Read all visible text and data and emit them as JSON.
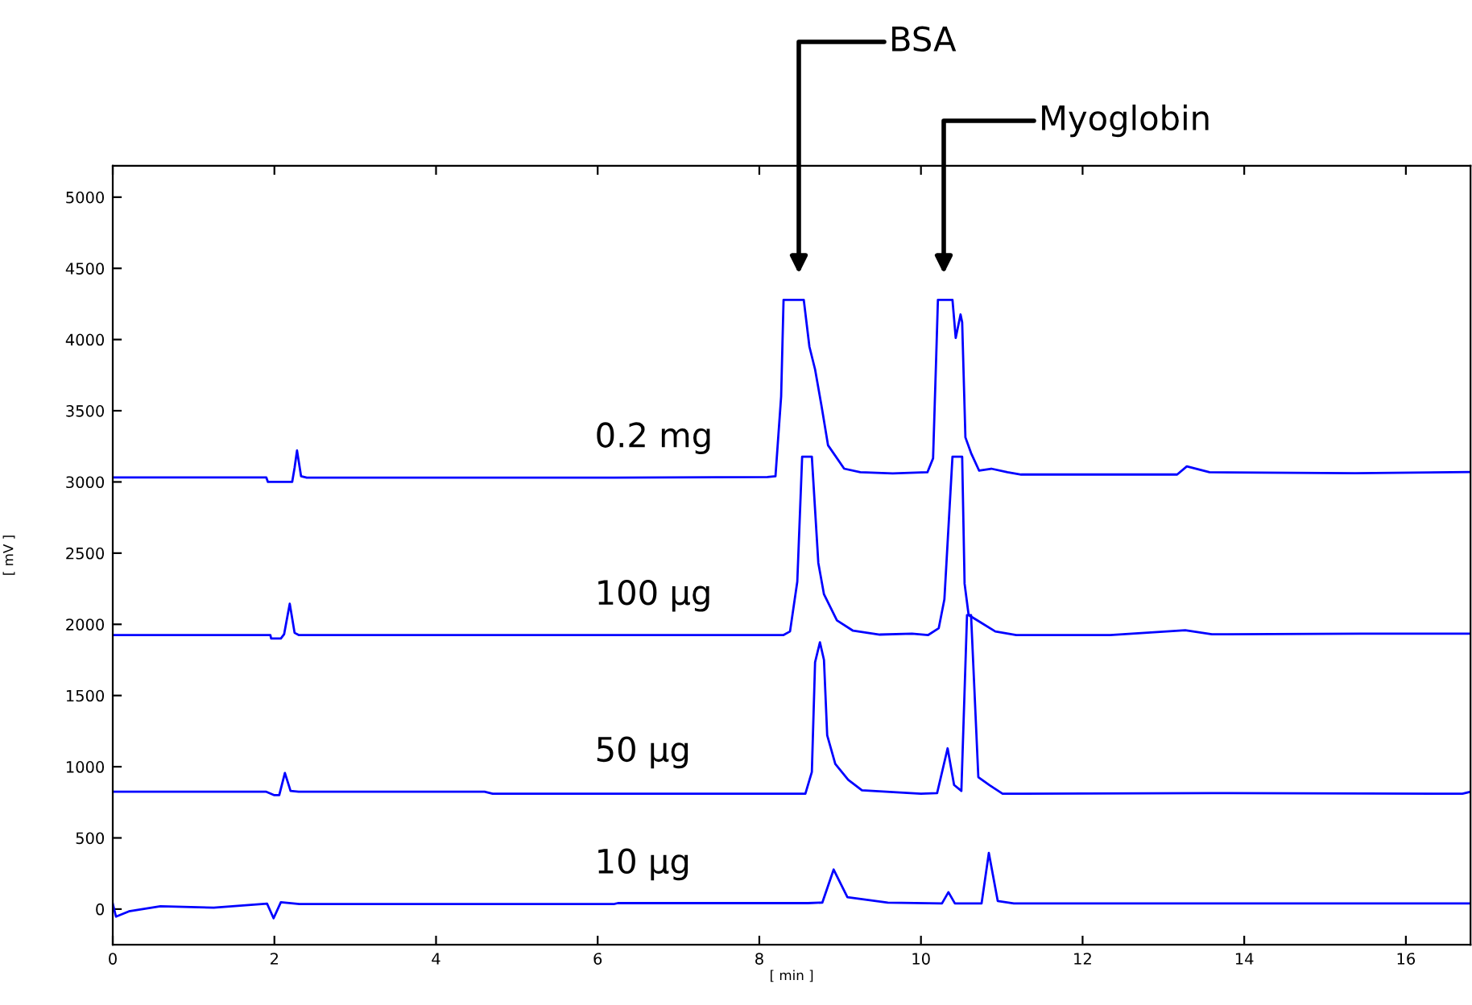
{
  "chart_data": {
    "type": "line",
    "xlabel": "[ min ]",
    "ylabel": "[ mV ]",
    "xlim": [
      0,
      16.8
    ],
    "ylim": [
      -250,
      5220
    ],
    "xticks": [
      0,
      2,
      4,
      6,
      8,
      10,
      12,
      14,
      16
    ],
    "yticks": [
      0,
      500,
      1000,
      1500,
      2000,
      2500,
      3000,
      3500,
      4000,
      4500,
      5000
    ],
    "grid": false,
    "legend": false,
    "marker": "none",
    "line_style": "solid",
    "annotations": [
      "BSA",
      "Myoglobin"
    ],
    "series": [
      {
        "name": "0.2 mg",
        "color": "#0000ff",
        "x": [
          0,
          1.9,
          1.92,
          2.22,
          2.25,
          2.28,
          2.33,
          2.4,
          6.0,
          8.1,
          8.2,
          8.27,
          8.3,
          8.55,
          8.62,
          8.69,
          8.77,
          8.85,
          9.05,
          9.25,
          9.65,
          10.08,
          10.15,
          10.19,
          10.21,
          10.39,
          10.43,
          10.49,
          10.51,
          10.55,
          10.62,
          10.72,
          10.87,
          11.07,
          11.24,
          13.17,
          13.29,
          13.57,
          15.37,
          16.8
        ],
        "values": [
          3031,
          3031,
          3000,
          3000,
          3100,
          3221,
          3040,
          3030,
          3030,
          3035,
          3040,
          3600,
          4279,
          4279,
          3950,
          3790,
          3533,
          3258,
          3093,
          3068,
          3060,
          3068,
          3166,
          3902,
          4279,
          4279,
          4011,
          4176,
          4121,
          3313,
          3203,
          3079,
          3093,
          3068,
          3052,
          3052,
          3109,
          3068,
          3061,
          3070
        ]
      },
      {
        "name": "100 µg",
        "color": "#0000ff",
        "x": [
          0,
          1.95,
          1.96,
          2.08,
          2.12,
          2.19,
          2.25,
          2.3,
          8.3,
          8.38,
          8.47,
          8.53,
          8.65,
          8.73,
          8.8,
          8.96,
          9.16,
          9.49,
          9.89,
          10.09,
          10.22,
          10.29,
          10.39,
          10.51,
          10.54,
          10.59,
          10.72,
          10.92,
          11.18,
          12.34,
          13.27,
          13.6,
          15.45,
          16.8
        ],
        "values": [
          1925,
          1925,
          1900,
          1900,
          1930,
          2145,
          1940,
          1925,
          1925,
          1950,
          2300,
          3177,
          3177,
          2432,
          2211,
          2028,
          1955,
          1928,
          1935,
          1925,
          1973,
          2175,
          3177,
          3177,
          2285,
          2065,
          2020,
          1950,
          1925,
          1925,
          1958,
          1930,
          1935,
          1935
        ]
      },
      {
        "name": "50 µg",
        "color": "#0000ff",
        "x": [
          0,
          1.9,
          2.0,
          2.06,
          2.13,
          2.2,
          2.3,
          4.6,
          4.7,
          8.57,
          8.65,
          8.69,
          8.75,
          8.8,
          8.84,
          8.94,
          9.1,
          9.27,
          10.0,
          10.2,
          10.33,
          10.41,
          10.5,
          10.57,
          10.62,
          10.71,
          10.85,
          11.01,
          13.6,
          16.7,
          16.8
        ],
        "values": [
          824,
          824,
          800,
          800,
          956,
          830,
          824,
          824,
          810,
          810,
          963,
          1734,
          1874,
          1750,
          1220,
          1019,
          908,
          835,
          810,
          815,
          1129,
          872,
          830,
          2065,
          2065,
          927,
          870,
          810,
          815,
          810,
          824
        ]
      },
      {
        "name": "10 µg",
        "color": "#0000ff",
        "x": [
          0,
          0.04,
          0.2,
          0.59,
          1.25,
          1.91,
          1.99,
          2.08,
          2.31,
          6.2,
          6.25,
          8.6,
          8.78,
          8.92,
          9.09,
          9.59,
          10.26,
          10.34,
          10.42,
          10.75,
          10.84,
          10.95,
          11.15,
          16.8
        ],
        "values": [
          38,
          -53,
          -16,
          20,
          10,
          38,
          -64,
          48,
          35,
          35,
          42,
          42,
          46,
          278,
          83,
          46,
          40,
          119,
          40,
          40,
          394,
          57,
          40,
          40
        ]
      }
    ]
  }
}
